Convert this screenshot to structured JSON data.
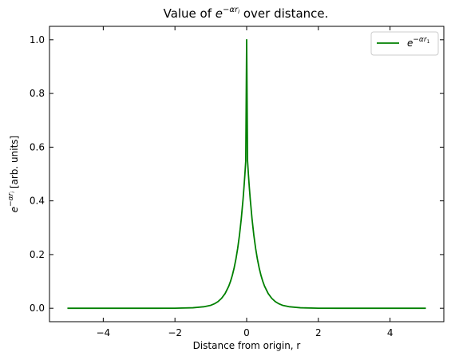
{
  "chart_data": {
    "type": "line",
    "title": "Value of e^{-αr_i} over distance.",
    "title_parts": {
      "prefix": "Value of ",
      "base": "e",
      "sup_pre": "−α",
      "sup_r": "r",
      "sup_sub": "i",
      "suffix": " over distance."
    },
    "xlabel": "Distance from origin, r",
    "ylabel": "e^{-αr_i} [arb. units]",
    "ylabel_parts": {
      "base": "e",
      "sup_pre": "−α",
      "sup_r": "r",
      "sup_sub": "i",
      "suffix": " [arb. units]"
    },
    "xlim": [
      -5.5,
      5.5
    ],
    "ylim": [
      -0.05,
      1.05
    ],
    "x_ticks": [
      -4,
      -2,
      0,
      2,
      4
    ],
    "x_tick_labels": [
      "−4",
      "−2",
      "0",
      "2",
      "4"
    ],
    "y_ticks": [
      0.0,
      0.2,
      0.4,
      0.6,
      0.8,
      1.0
    ],
    "y_tick_labels": [
      "0.0",
      "0.2",
      "0.4",
      "0.6",
      "0.8",
      "1.0"
    ],
    "grid": false,
    "legend_position": "top-right",
    "series": [
      {
        "name": "e^{-αr_1}",
        "name_parts": {
          "base": "e",
          "sup_pre": "−α",
          "sup_r": "r",
          "sup_sub": "1"
        },
        "color": "#008000",
        "x": [
          -5.0,
          -4.0,
          -3.0,
          -2.5,
          -2.0,
          -1.5,
          -1.2,
          -1.0,
          -0.9,
          -0.8,
          -0.7,
          -0.6,
          -0.5,
          -0.45,
          -0.4,
          -0.35,
          -0.3,
          -0.25,
          -0.2,
          -0.15,
          -0.1,
          -0.075,
          -0.05,
          -0.025,
          0.0,
          0.025,
          0.05,
          0.075,
          0.1,
          0.15,
          0.2,
          0.25,
          0.3,
          0.35,
          0.4,
          0.45,
          0.5,
          0.6,
          0.7,
          0.8,
          0.9,
          1.0,
          1.2,
          1.5,
          2.0,
          2.5,
          3.0,
          4.0,
          5.0
        ],
        "y": [
          0.0,
          0.0,
          0.0,
          0.0,
          0.0002,
          0.0018,
          0.0055,
          0.0111,
          0.0166,
          0.0247,
          0.0369,
          0.055,
          0.0821,
          0.1003,
          0.1225,
          0.1496,
          0.1827,
          0.2231,
          0.2725,
          0.3329,
          0.4066,
          0.4493,
          0.4966,
          0.5488,
          1.0,
          0.5488,
          0.4966,
          0.4493,
          0.4066,
          0.3329,
          0.2725,
          0.2231,
          0.1827,
          0.1496,
          0.1225,
          0.1003,
          0.0821,
          0.055,
          0.0369,
          0.0247,
          0.0166,
          0.0111,
          0.0055,
          0.0018,
          0.0002,
          0.0,
          0.0,
          0.0,
          0.0
        ]
      }
    ]
  }
}
